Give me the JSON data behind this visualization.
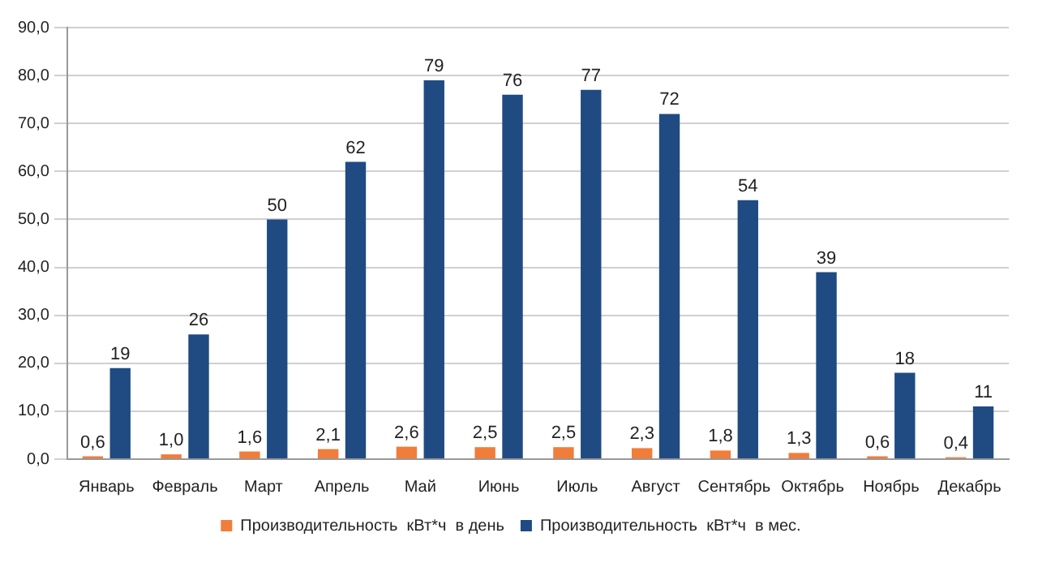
{
  "chart_data": {
    "type": "bar",
    "categories": [
      "Январь",
      "Февраль",
      "Март",
      "Апрель",
      "Май",
      "Июнь",
      "Июль",
      "Август",
      "Сентябрь",
      "Октябрь",
      "Ноябрь",
      "Декабрь"
    ],
    "series": [
      {
        "name": "Производительность  кВт*ч  в день",
        "color": "#f07d3a",
        "values": [
          0.6,
          1.0,
          1.6,
          2.1,
          2.6,
          2.5,
          2.5,
          2.3,
          1.8,
          1.3,
          0.6,
          0.4
        ],
        "value_labels": [
          "0,6",
          "1,0",
          "1,6",
          "2,1",
          "2,6",
          "2,5",
          "2,5",
          "2,3",
          "1,8",
          "1,3",
          "0,6",
          "0,4"
        ]
      },
      {
        "name": "Производительность  кВт*ч  в мес.",
        "color": "#1f4b82",
        "values": [
          19,
          26,
          50,
          62,
          79,
          76,
          77,
          72,
          54,
          39,
          18,
          11
        ],
        "value_labels": [
          "19",
          "26",
          "50",
          "62",
          "79",
          "76",
          "77",
          "72",
          "54",
          "39",
          "18",
          "11"
        ]
      }
    ],
    "ylim": [
      0,
      90
    ],
    "yticks": [
      {
        "value": 0,
        "label": "0,0"
      },
      {
        "value": 10,
        "label": "10,0"
      },
      {
        "value": 20,
        "label": "20,0"
      },
      {
        "value": 30,
        "label": "30,0"
      },
      {
        "value": 40,
        "label": "40,0"
      },
      {
        "value": 50,
        "label": "50,0"
      },
      {
        "value": 60,
        "label": "60,0"
      },
      {
        "value": 70,
        "label": "70,0"
      },
      {
        "value": 80,
        "label": "80,0"
      },
      {
        "value": 90,
        "label": "90,0"
      }
    ],
    "grid": "y",
    "legend": "bottom"
  }
}
